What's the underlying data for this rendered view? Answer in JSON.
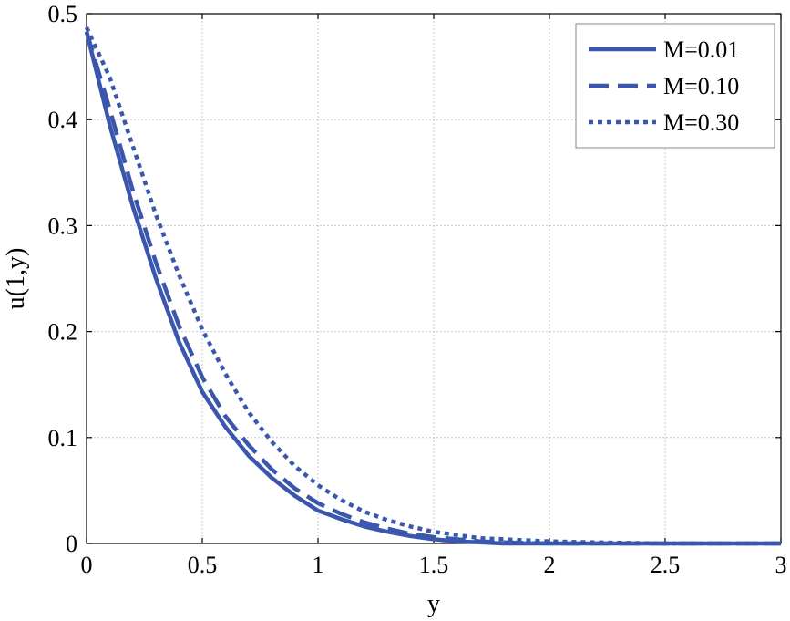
{
  "chart_data": {
    "type": "line",
    "title": "",
    "xlabel": "y",
    "ylabel": "u(1,y)",
    "xlim": [
      0,
      3
    ],
    "ylim": [
      0,
      0.5
    ],
    "xticks": [
      0,
      0.5,
      1,
      1.5,
      2,
      2.5,
      3
    ],
    "xtick_labels": [
      "0",
      "0.5",
      "1",
      "1.5",
      "2",
      "2.5",
      "3"
    ],
    "yticks": [
      0,
      0.1,
      0.2,
      0.3,
      0.4,
      0.5
    ],
    "ytick_labels": [
      "0",
      "0.1",
      "0.2",
      "0.3",
      "0.4",
      "0.5"
    ],
    "grid": true,
    "legend_position": "top-right",
    "color": "#3a56ad",
    "series": [
      {
        "name": "M=0.01",
        "style": "solid",
        "x": [
          0,
          0.1,
          0.2,
          0.3,
          0.4,
          0.5,
          0.6,
          0.7,
          0.8,
          0.9,
          1.0,
          1.1,
          1.2,
          1.3,
          1.4,
          1.5,
          1.6,
          1.7,
          1.8,
          2.0,
          2.5,
          3.0
        ],
        "y": [
          0.483,
          0.395,
          0.318,
          0.25,
          0.19,
          0.143,
          0.11,
          0.083,
          0.062,
          0.045,
          0.031,
          0.023,
          0.016,
          0.011,
          0.007,
          0.004,
          0.002,
          0.001,
          0.0,
          0.0,
          0.0,
          0.0
        ]
      },
      {
        "name": "M=0.10",
        "style": "dashed",
        "x": [
          0,
          0.1,
          0.2,
          0.3,
          0.4,
          0.5,
          0.6,
          0.7,
          0.8,
          0.9,
          1.0,
          1.1,
          1.2,
          1.3,
          1.4,
          1.5,
          1.6,
          1.7,
          1.8,
          2.0,
          2.5,
          3.0
        ],
        "y": [
          0.483,
          0.41,
          0.333,
          0.265,
          0.205,
          0.157,
          0.12,
          0.093,
          0.07,
          0.052,
          0.038,
          0.028,
          0.02,
          0.014,
          0.009,
          0.006,
          0.004,
          0.002,
          0.001,
          0.0,
          0.0,
          0.0
        ]
      },
      {
        "name": "M=0.30",
        "style": "dotted",
        "x": [
          0,
          0.1,
          0.2,
          0.3,
          0.4,
          0.5,
          0.6,
          0.7,
          0.8,
          0.9,
          1.0,
          1.1,
          1.2,
          1.3,
          1.4,
          1.5,
          1.6,
          1.7,
          1.8,
          2.0,
          2.2,
          2.5,
          3.0
        ],
        "y": [
          0.487,
          0.44,
          0.375,
          0.31,
          0.253,
          0.202,
          0.16,
          0.124,
          0.096,
          0.073,
          0.055,
          0.041,
          0.03,
          0.022,
          0.016,
          0.011,
          0.008,
          0.005,
          0.004,
          0.002,
          0.001,
          0.0,
          0.0
        ]
      }
    ]
  }
}
